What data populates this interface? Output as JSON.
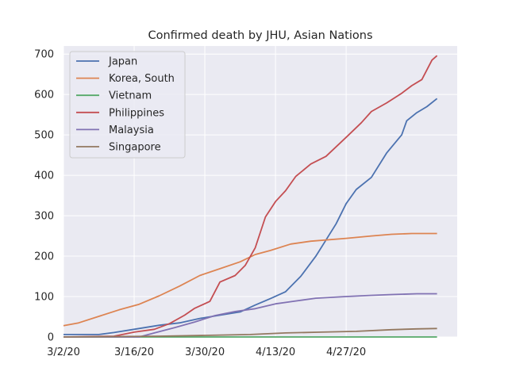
{
  "chart_data": {
    "type": "line",
    "title": "Confirmed death by JHU, Asian Nations",
    "xlabel": "",
    "ylabel": "",
    "x_start": "3/2/20",
    "x_end": "5/19/20",
    "x_ticks": [
      "3/2/20",
      "3/16/20",
      "3/30/20",
      "4/13/20",
      "4/27/20"
    ],
    "y_ticks": [
      "0",
      "100",
      "200",
      "300",
      "400",
      "500",
      "600",
      "700"
    ],
    "ylim": [
      0,
      720
    ],
    "grid": true,
    "legend": "top-left",
    "series": [
      {
        "name": "Japan",
        "color": "#4c72b0",
        "points": [
          [
            "3/2/20",
            6
          ],
          [
            "3/9/20",
            6
          ],
          [
            "3/12/20",
            11
          ],
          [
            "3/16/20",
            19
          ],
          [
            "3/21/20",
            29
          ],
          [
            "3/25/20",
            35
          ],
          [
            "3/29/20",
            46
          ],
          [
            "4/2/20",
            54
          ],
          [
            "4/6/20",
            62
          ],
          [
            "4/9/20",
            79
          ],
          [
            "4/12/20",
            95
          ],
          [
            "4/15/20",
            112
          ],
          [
            "4/18/20",
            150
          ],
          [
            "4/21/20",
            200
          ],
          [
            "4/23/20",
            240
          ],
          [
            "4/25/20",
            280
          ],
          [
            "4/27/20",
            330
          ],
          [
            "4/29/20",
            365
          ],
          [
            "5/2/20",
            395
          ],
          [
            "5/5/20",
            455
          ],
          [
            "5/8/20",
            500
          ],
          [
            "5/9/20",
            535
          ],
          [
            "5/11/20",
            555
          ],
          [
            "5/13/20",
            570
          ],
          [
            "5/15/20",
            590
          ]
        ]
      },
      {
        "name": "Korea, South",
        "color": "#dd8452",
        "points": [
          [
            "3/2/20",
            28
          ],
          [
            "3/5/20",
            35
          ],
          [
            "3/9/20",
            51
          ],
          [
            "3/13/20",
            67
          ],
          [
            "3/17/20",
            81
          ],
          [
            "3/21/20",
            102
          ],
          [
            "3/25/20",
            126
          ],
          [
            "3/29/20",
            152
          ],
          [
            "4/2/20",
            169
          ],
          [
            "4/6/20",
            186
          ],
          [
            "4/9/20",
            204
          ],
          [
            "4/12/20",
            214
          ],
          [
            "4/16/20",
            230
          ],
          [
            "4/20/20",
            237
          ],
          [
            "4/27/20",
            244
          ],
          [
            "5/2/20",
            250
          ],
          [
            "5/6/20",
            254
          ],
          [
            "5/10/20",
            256
          ],
          [
            "5/15/20",
            256
          ]
        ]
      },
      {
        "name": "Vietnam",
        "color": "#55a868",
        "points": [
          [
            "3/2/20",
            0
          ],
          [
            "5/15/20",
            0
          ]
        ]
      },
      {
        "name": "Philippines",
        "color": "#c44e52",
        "points": [
          [
            "3/2/20",
            0
          ],
          [
            "3/12/20",
            2
          ],
          [
            "3/16/20",
            12
          ],
          [
            "3/20/20",
            19
          ],
          [
            "3/23/20",
            33
          ],
          [
            "3/26/20",
            54
          ],
          [
            "3/28/20",
            71
          ],
          [
            "3/31/20",
            88
          ],
          [
            "4/2/20",
            136
          ],
          [
            "4/5/20",
            152
          ],
          [
            "4/7/20",
            177
          ],
          [
            "4/9/20",
            221
          ],
          [
            "4/11/20",
            297
          ],
          [
            "4/13/20",
            335
          ],
          [
            "4/15/20",
            362
          ],
          [
            "4/17/20",
            397
          ],
          [
            "4/20/20",
            428
          ],
          [
            "4/23/20",
            447
          ],
          [
            "4/27/20",
            494
          ],
          [
            "4/30/20",
            530
          ],
          [
            "5/2/20",
            558
          ],
          [
            "5/5/20",
            579
          ],
          [
            "5/8/20",
            603
          ],
          [
            "5/10/20",
            622
          ],
          [
            "5/12/20",
            637
          ],
          [
            "5/14/20",
            685
          ],
          [
            "5/15/20",
            696
          ]
        ]
      },
      {
        "name": "Malaysia",
        "color": "#8172b3",
        "points": [
          [
            "3/2/20",
            0
          ],
          [
            "3/17/20",
            0
          ],
          [
            "3/20/20",
            10
          ],
          [
            "3/24/20",
            23
          ],
          [
            "3/28/20",
            37
          ],
          [
            "4/1/20",
            53
          ],
          [
            "4/5/20",
            63
          ],
          [
            "4/9/20",
            70
          ],
          [
            "4/13/20",
            82
          ],
          [
            "4/17/20",
            89
          ],
          [
            "4/21/20",
            96
          ],
          [
            "4/27/20",
            100
          ],
          [
            "5/2/20",
            103
          ],
          [
            "5/6/20",
            105
          ],
          [
            "5/11/20",
            107
          ],
          [
            "5/15/20",
            107
          ]
        ]
      },
      {
        "name": "Singapore",
        "color": "#937860",
        "points": [
          [
            "3/2/20",
            0
          ],
          [
            "3/21/20",
            2
          ],
          [
            "3/30/20",
            4
          ],
          [
            "4/8/20",
            6
          ],
          [
            "4/15/20",
            10
          ],
          [
            "4/22/20",
            12
          ],
          [
            "4/29/20",
            14
          ],
          [
            "5/6/20",
            18
          ],
          [
            "5/11/20",
            20
          ],
          [
            "5/15/20",
            21
          ]
        ]
      }
    ]
  }
}
